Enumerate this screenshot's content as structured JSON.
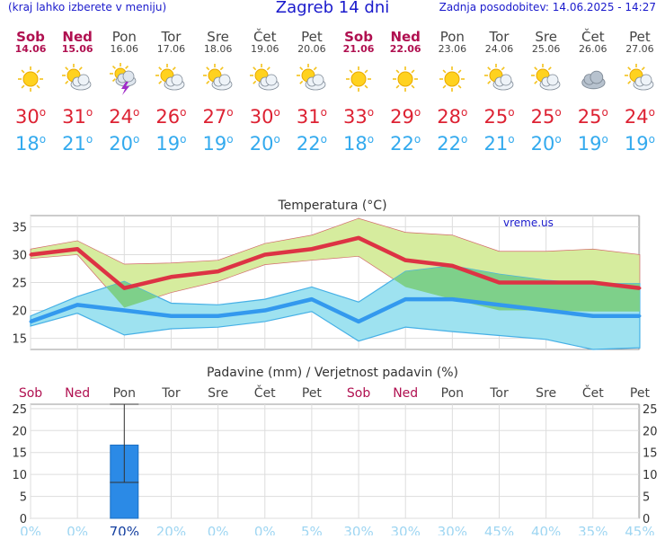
{
  "header": {
    "menu_hint": "(kraj lahko izberete v meniju)",
    "title": "Zagreb 14 dni",
    "updated": "Zadnja posodobitev: 14.06.2025 - 14:27"
  },
  "colors": {
    "weekend": "#b01050",
    "weekday": "#444444",
    "max_line": "#dd3344",
    "min_line": "#3399ee",
    "max_band": "#d6ec9e",
    "min_band": "#9ee2f0",
    "overlap": "#7ed08a",
    "precip_bar": "#2b8ae6",
    "header_blue": "#1a1acc"
  },
  "days": [
    {
      "name": "Sob",
      "date": "14.06",
      "weekend": true,
      "icon": "sun-icon",
      "max": "30",
      "min": "18"
    },
    {
      "name": "Ned",
      "date": "15.06",
      "weekend": true,
      "icon": "sun-cloud-icon",
      "max": "31",
      "min": "21"
    },
    {
      "name": "Pon",
      "date": "16.06",
      "weekend": false,
      "icon": "thunderstorm-icon",
      "max": "24",
      "min": "20"
    },
    {
      "name": "Tor",
      "date": "17.06",
      "weekend": false,
      "icon": "sun-cloud-icon",
      "max": "26",
      "min": "19"
    },
    {
      "name": "Sre",
      "date": "18.06",
      "weekend": false,
      "icon": "sun-cloud-icon",
      "max": "27",
      "min": "19"
    },
    {
      "name": "Čet",
      "date": "19.06",
      "weekend": false,
      "icon": "sun-cloud-icon",
      "max": "30",
      "min": "20"
    },
    {
      "name": "Pet",
      "date": "20.06",
      "weekend": false,
      "icon": "sun-cloud-icon",
      "max": "31",
      "min": "22"
    },
    {
      "name": "Sob",
      "date": "21.06",
      "weekend": true,
      "icon": "sun-icon",
      "max": "33",
      "min": "18"
    },
    {
      "name": "Ned",
      "date": "22.06",
      "weekend": true,
      "icon": "sun-icon",
      "max": "29",
      "min": "22"
    },
    {
      "name": "Pon",
      "date": "23.06",
      "weekend": false,
      "icon": "sun-icon",
      "max": "28",
      "min": "22"
    },
    {
      "name": "Tor",
      "date": "24.06",
      "weekend": false,
      "icon": "sun-cloud-icon",
      "max": "25",
      "min": "21"
    },
    {
      "name": "Sre",
      "date": "25.06",
      "weekend": false,
      "icon": "sun-cloud-icon",
      "max": "25",
      "min": "20"
    },
    {
      "name": "Čet",
      "date": "26.06",
      "weekend": false,
      "icon": "cloud-icon",
      "max": "25",
      "min": "19"
    },
    {
      "name": "Pet",
      "date": "27.06",
      "weekend": false,
      "icon": "sun-cloud-icon",
      "max": "24",
      "min": "19"
    }
  ],
  "chart_data": [
    {
      "type": "line",
      "title": "Temperatura (°C)",
      "watermark": "vreme.us",
      "categories": [
        "Sob",
        "Ned",
        "Pon",
        "Tor",
        "Sre",
        "Čet",
        "Pet",
        "Sob",
        "Ned",
        "Pon",
        "Tor",
        "Sre",
        "Čet",
        "Pet"
      ],
      "ylim": [
        13,
        37
      ],
      "yticks": [
        15,
        20,
        25,
        30,
        35
      ],
      "grid": true,
      "series": [
        {
          "role": "max",
          "values": [
            30,
            31,
            24,
            26,
            27,
            30,
            31,
            33,
            29,
            28,
            25,
            25,
            25,
            24
          ]
        },
        {
          "role": "max_upper",
          "values": [
            31,
            32.5,
            28.3,
            28.5,
            29,
            32,
            33.5,
            36.5,
            34,
            33.5,
            30.6,
            30.6,
            31,
            30
          ]
        },
        {
          "role": "max_lower",
          "values": [
            29.3,
            30,
            20.5,
            23.2,
            25.2,
            28.2,
            29,
            29.7,
            24.2,
            22,
            20,
            20,
            19.8,
            19.8
          ]
        },
        {
          "role": "min",
          "values": [
            18,
            21,
            20,
            19,
            19,
            20,
            22,
            18,
            22,
            22,
            21,
            20,
            19,
            19
          ]
        },
        {
          "role": "min_upper",
          "values": [
            19,
            22.5,
            25.2,
            21.3,
            21,
            22,
            24.2,
            21.5,
            27,
            28,
            26.5,
            25.4,
            24.8,
            24.8
          ]
        },
        {
          "role": "min_lower",
          "values": [
            17.2,
            19.5,
            15.6,
            16.7,
            17,
            18,
            19.8,
            14.5,
            17,
            16.2,
            15.5,
            14.8,
            13,
            13.3
          ]
        }
      ]
    },
    {
      "type": "bar",
      "title": "Padavine (mm) / Verjetnost padavin (%)",
      "categories": [
        "Sob",
        "Ned",
        "Pon",
        "Tor",
        "Sre",
        "Čet",
        "Pet",
        "Sob",
        "Ned",
        "Pon",
        "Tor",
        "Sre",
        "Čet",
        "Pet"
      ],
      "ylim": [
        0,
        26
      ],
      "yticks": [
        0,
        5,
        10,
        15,
        20,
        25
      ],
      "values": [
        0,
        0,
        16.7,
        0,
        0,
        0,
        0,
        0,
        0,
        0,
        0,
        0,
        0,
        0
      ],
      "error_low": [
        0,
        0,
        8.2,
        0,
        0,
        0,
        0,
        0,
        0,
        0,
        0,
        0,
        0,
        0
      ],
      "error_high": [
        0,
        0,
        26,
        0,
        0,
        0,
        0,
        0,
        0,
        0,
        0,
        0,
        0,
        0
      ],
      "probability": [
        "0%",
        "0%",
        "70%",
        "20%",
        "0%",
        "0%",
        "5%",
        "30%",
        "30%",
        "30%",
        "45%",
        "40%",
        "35%",
        "45%"
      ]
    }
  ]
}
